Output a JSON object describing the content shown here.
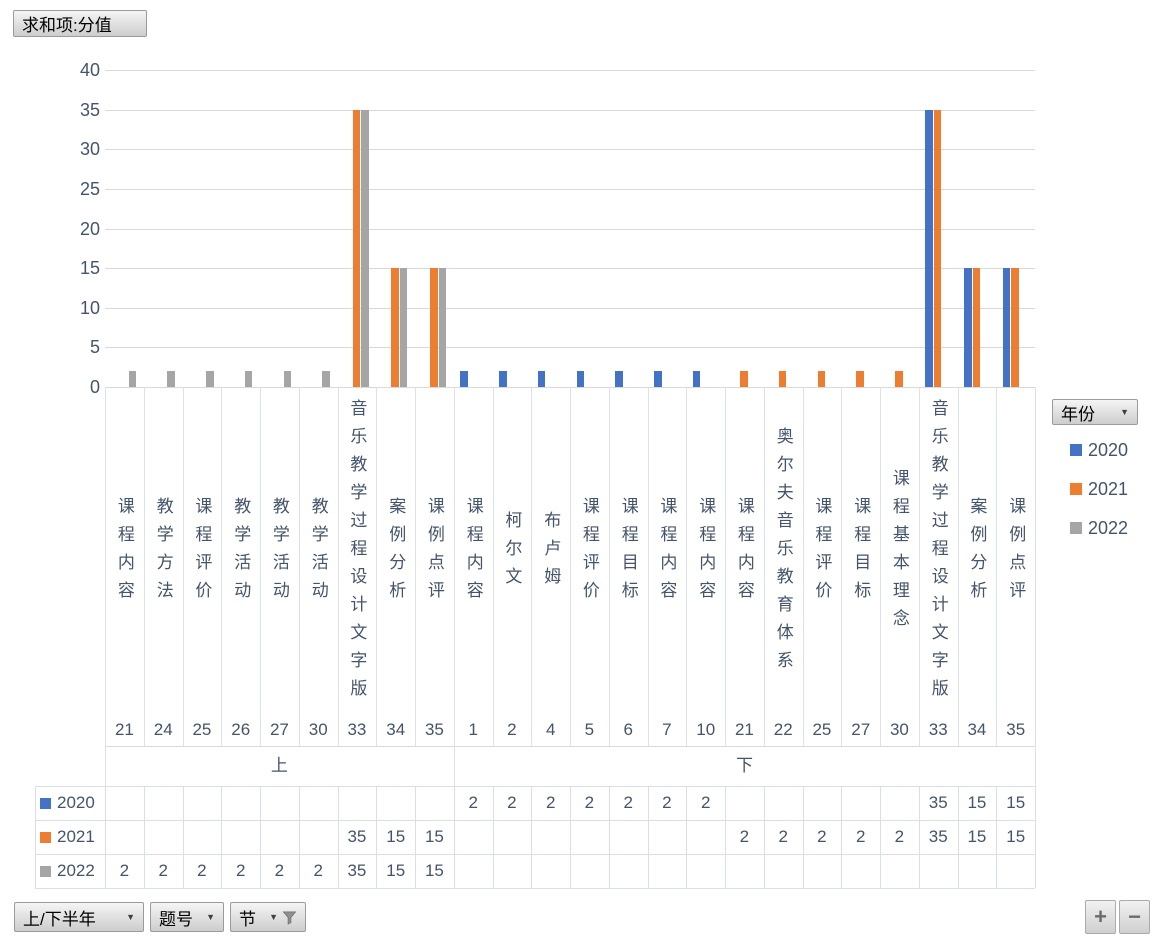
{
  "pivot": {
    "value_button": "求和项:分值",
    "legend_button": "年份",
    "axis_buttons": [
      {
        "label": "上/下半年",
        "filtered": false
      },
      {
        "label": "题号",
        "filtered": false
      },
      {
        "label": "节",
        "filtered": true
      }
    ],
    "expand_label": "+",
    "collapse_label": "−"
  },
  "chart_data": {
    "type": "bar",
    "title": "求和项:分值",
    "legend_title": "年份",
    "legend_position": "right",
    "grid": true,
    "ylim": [
      0,
      40
    ],
    "y_ticks": [
      0,
      5,
      10,
      15,
      20,
      25,
      30,
      35,
      40
    ],
    "groups": [
      {
        "label": "上",
        "span": 9
      },
      {
        "label": "下",
        "span": 15
      }
    ],
    "categories": [
      {
        "label": "课程内容",
        "code": "21"
      },
      {
        "label": "教学方法",
        "code": "24"
      },
      {
        "label": "课程评价",
        "code": "25"
      },
      {
        "label": "教学活动",
        "code": "26"
      },
      {
        "label": "教学活动",
        "code": "27"
      },
      {
        "label": "教学活动",
        "code": "30"
      },
      {
        "label": "音乐教学过程设计文字版",
        "code": "33"
      },
      {
        "label": "案例分析",
        "code": "34"
      },
      {
        "label": "课例点评",
        "code": "35"
      },
      {
        "label": "课程内容",
        "code": "1"
      },
      {
        "label": "柯尔文",
        "code": "2"
      },
      {
        "label": "布卢姆",
        "code": "4"
      },
      {
        "label": "课程评价",
        "code": "5"
      },
      {
        "label": "课程目标",
        "code": "6"
      },
      {
        "label": "课程内容",
        "code": "7"
      },
      {
        "label": "课程内容",
        "code": "10"
      },
      {
        "label": "课程内容",
        "code": "21"
      },
      {
        "label": "奥尔夫音乐教育体系",
        "code": "22"
      },
      {
        "label": "课程评价",
        "code": "25"
      },
      {
        "label": "课程目标",
        "code": "27"
      },
      {
        "label": "课程基本理念",
        "code": "30"
      },
      {
        "label": "音乐教学过程设计文字版",
        "code": "33"
      },
      {
        "label": "案例分析",
        "code": "34"
      },
      {
        "label": "课例点评",
        "code": "35"
      }
    ],
    "series": [
      {
        "name": "2020",
        "color": "#4472C4",
        "values": [
          null,
          null,
          null,
          null,
          null,
          null,
          null,
          null,
          null,
          2,
          2,
          2,
          2,
          2,
          2,
          2,
          null,
          null,
          null,
          null,
          null,
          35,
          15,
          15
        ]
      },
      {
        "name": "2021",
        "color": "#ED7D31",
        "values": [
          null,
          null,
          null,
          null,
          null,
          null,
          35,
          15,
          15,
          null,
          null,
          null,
          null,
          null,
          null,
          null,
          2,
          2,
          2,
          2,
          2,
          35,
          15,
          15
        ]
      },
      {
        "name": "2022",
        "color": "#A5A5A5",
        "values": [
          2,
          2,
          2,
          2,
          2,
          2,
          35,
          15,
          15,
          null,
          null,
          null,
          null,
          null,
          null,
          null,
          null,
          null,
          null,
          null,
          null,
          null,
          null,
          null
        ]
      }
    ]
  }
}
